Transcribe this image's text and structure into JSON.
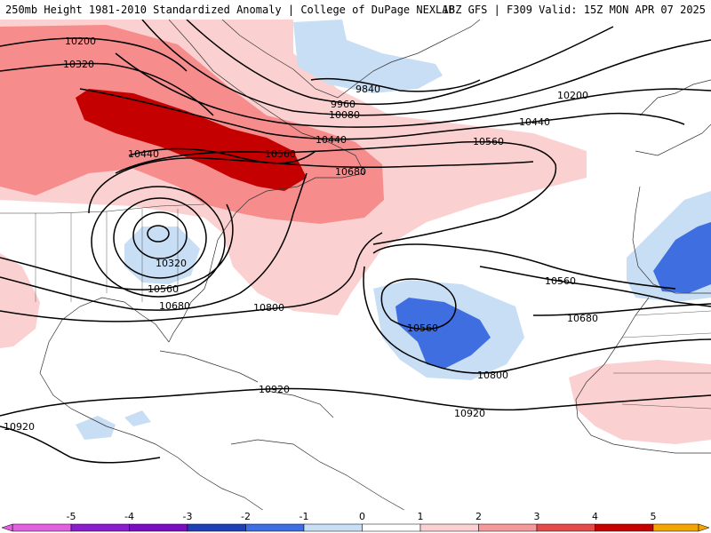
{
  "header": {
    "left": "250mb Height 1981-2010 Standardized Anomaly | College of DuPage NEXLAB",
    "right": "18Z GFS | F309 Valid: 15Z MON APR 07 2025"
  },
  "contour_labels": [
    {
      "id": "l1",
      "text": "10200"
    },
    {
      "id": "l2",
      "text": "10320"
    },
    {
      "id": "l3",
      "text": "9840"
    },
    {
      "id": "l4",
      "text": "9960"
    },
    {
      "id": "l5",
      "text": "10080"
    },
    {
      "id": "l6",
      "text": "10200"
    },
    {
      "id": "l7",
      "text": "10440"
    },
    {
      "id": "l8",
      "text": "10440"
    },
    {
      "id": "l9",
      "text": "10560"
    },
    {
      "id": "l10",
      "text": "10560"
    },
    {
      "id": "l11",
      "text": "10440"
    },
    {
      "id": "l12",
      "text": "10680"
    },
    {
      "id": "l13",
      "text": "10320"
    },
    {
      "id": "l14",
      "text": "10560"
    },
    {
      "id": "l15",
      "text": "10680"
    },
    {
      "id": "l16",
      "text": "10800"
    },
    {
      "id": "l17",
      "text": "10560"
    },
    {
      "id": "l18",
      "text": "10560"
    },
    {
      "id": "l19",
      "text": "10680"
    },
    {
      "id": "l20",
      "text": "10800"
    },
    {
      "id": "l21",
      "text": "10920"
    },
    {
      "id": "l22",
      "text": "10920"
    },
    {
      "id": "l23",
      "text": "10920"
    }
  ],
  "colorbar": {
    "ticks": [
      "-5",
      "-4",
      "-3",
      "-2",
      "-1",
      "0",
      "1",
      "2",
      "3",
      "4",
      "5"
    ],
    "colors": [
      "#c03ec8",
      "#7a0dc2",
      "#1f3fb5",
      "#3f6ee0",
      "#c8def5",
      "#ffffff",
      "#fbd0d0",
      "#f59a9a",
      "#e34a4a",
      "#c40000",
      "#f2a400"
    ]
  }
}
